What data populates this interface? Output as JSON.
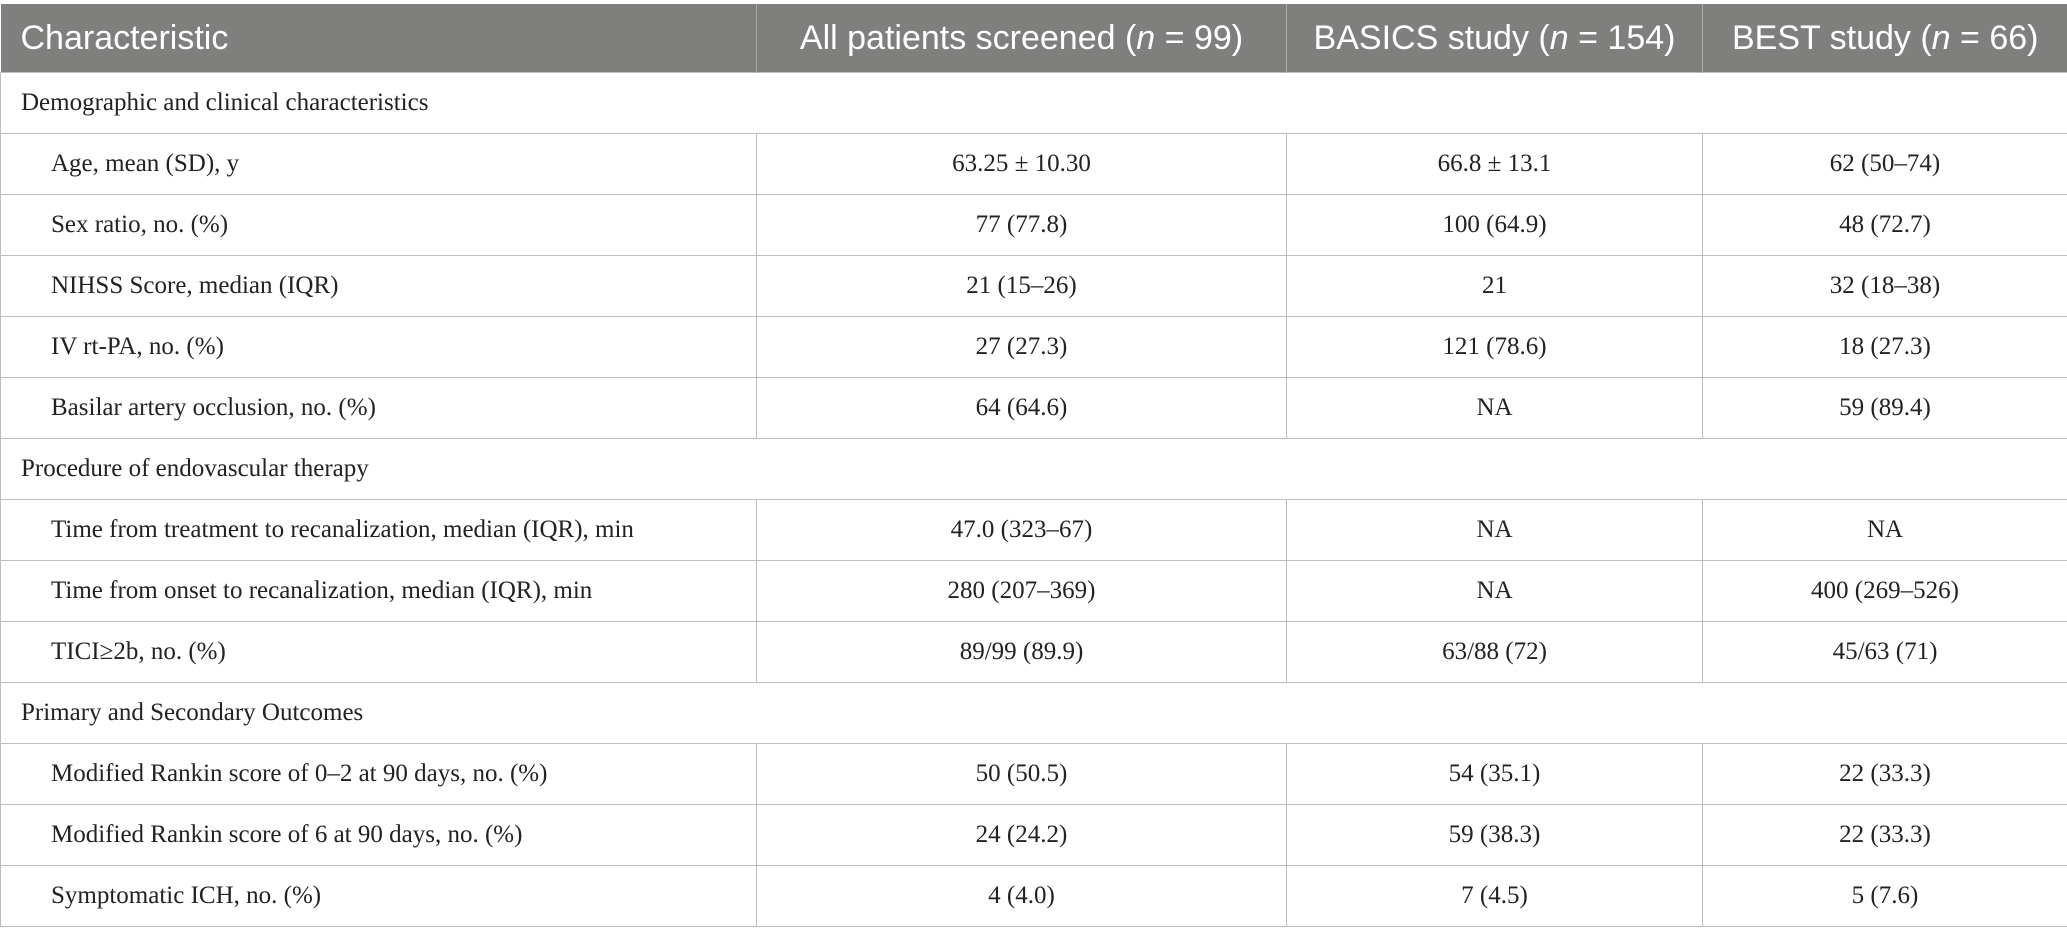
{
  "header": {
    "characteristic": "Characteristic",
    "col1": {
      "prefix": "All patients screened (",
      "n": "n",
      "suffix": " = 99)"
    },
    "col2": {
      "prefix": "BASICS study (",
      "n": "n",
      "suffix": " = 154)"
    },
    "col3": {
      "prefix": "BEST study (",
      "n": "n",
      "suffix": " = 66)"
    }
  },
  "sections": [
    {
      "title": "Demographic and clinical characteristics",
      "rows": [
        {
          "label": "Age, mean (SD), y",
          "v1": "63.25 ± 10.30",
          "v2": "66.8 ± 13.1",
          "v3": "62 (50–74)"
        },
        {
          "label": "Sex ratio, no. (%)",
          "v1": "77 (77.8)",
          "v2": "100 (64.9)",
          "v3": "48 (72.7)"
        },
        {
          "label": "NIHSS Score, median (IQR)",
          "v1": "21 (15–26)",
          "v2": "21",
          "v3": "32 (18–38)"
        },
        {
          "label": "IV rt-PA, no. (%)",
          "v1": "27 (27.3)",
          "v2": "121 (78.6)",
          "v3": "18 (27.3)"
        },
        {
          "label": "Basilar artery occlusion, no. (%)",
          "v1": "64 (64.6)",
          "v2": "NA",
          "v3": "59 (89.4)"
        }
      ]
    },
    {
      "title": "Procedure of endovascular therapy",
      "rows": [
        {
          "label": "Time from treatment to recanalization, median (IQR), min",
          "v1": "47.0 (323–67)",
          "v2": "NA",
          "v3": "NA"
        },
        {
          "label": "Time from onset to recanalization, median (IQR), min",
          "v1": "280 (207–369)",
          "v2": "NA",
          "v3": "400 (269–526)"
        },
        {
          "label": "TICI≥2b, no. (%)",
          "v1": "89/99 (89.9)",
          "v2": "63/88 (72)",
          "v3": "45/63 (71)"
        }
      ]
    },
    {
      "title": "Primary and Secondary Outcomes",
      "rows": [
        {
          "label": "Modified Rankin score of 0–2 at 90 days, no. (%)",
          "v1": "50 (50.5)",
          "v2": "54 (35.1)",
          "v3": "22 (33.3)"
        },
        {
          "label": "Modified Rankin score of 6 at 90 days, no. (%)",
          "v1": "24 (24.2)",
          "v2": "59 (38.3)",
          "v3": "22 (33.3)"
        },
        {
          "label": "Symptomatic ICH, no. (%)",
          "v1": "4 (4.0)",
          "v2": "7 (4.5)",
          "v3": "5 (7.6)"
        }
      ]
    }
  ]
}
